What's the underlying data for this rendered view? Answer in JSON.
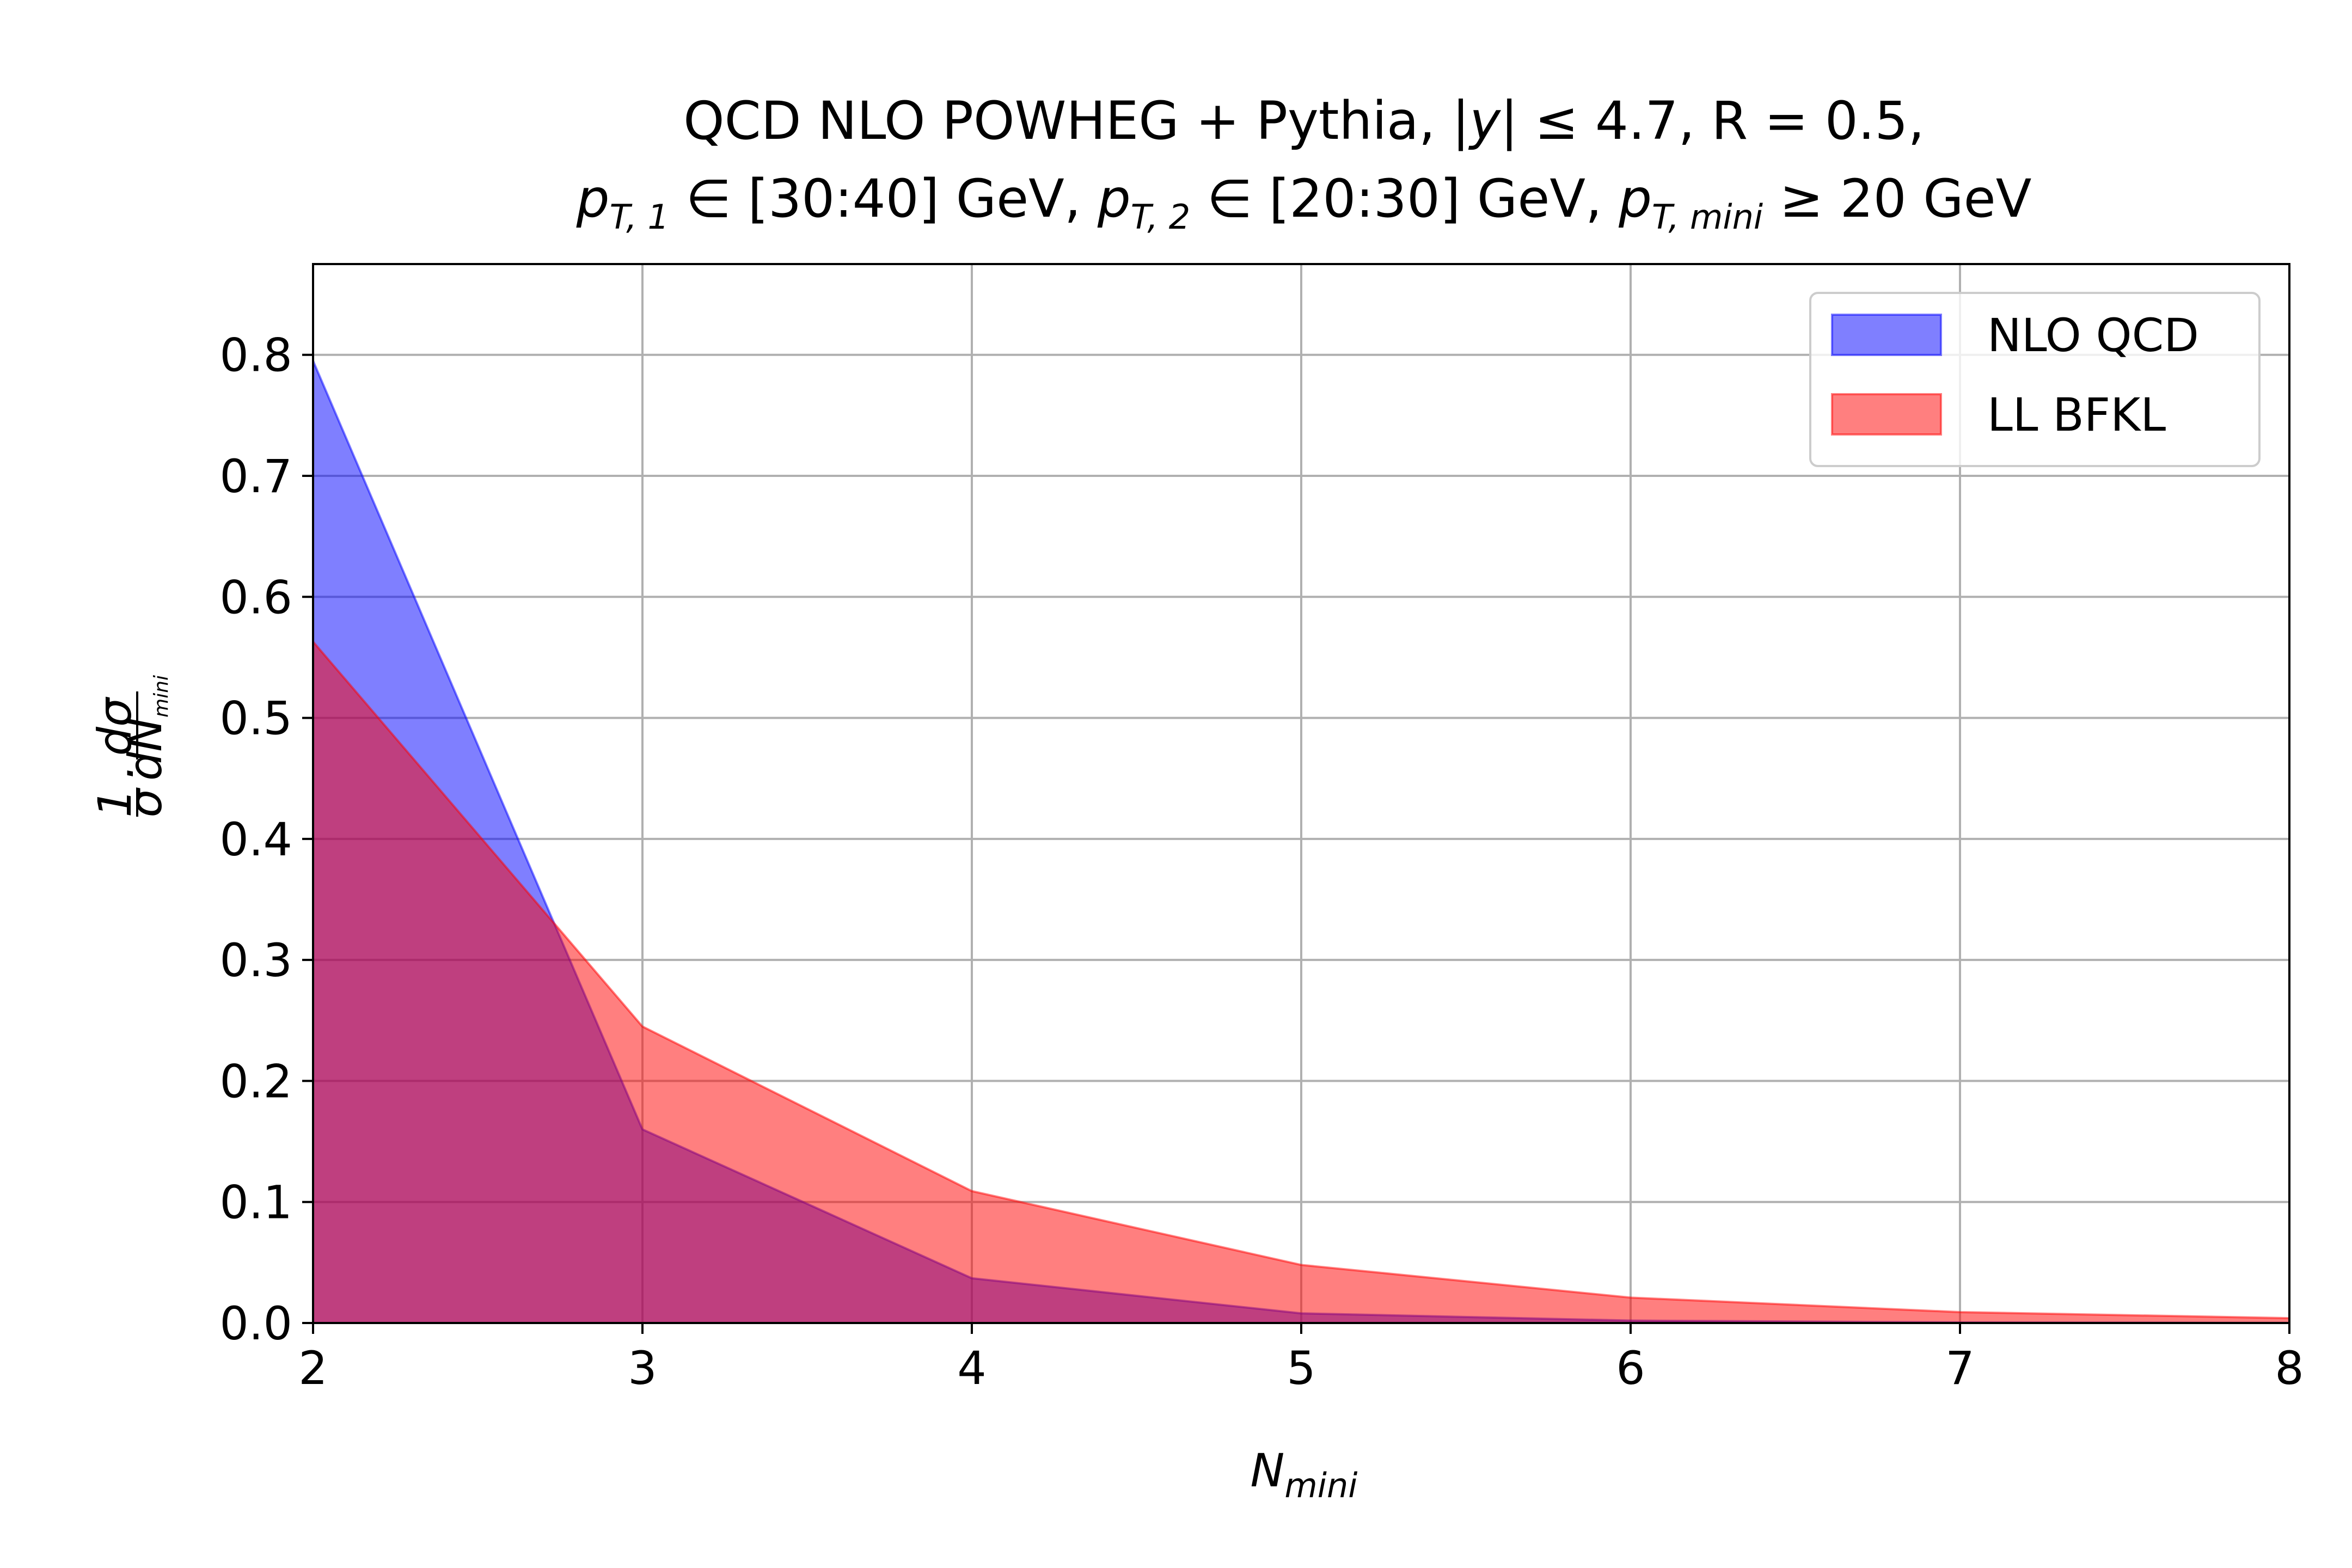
{
  "chart_data": {
    "type": "area",
    "title_line1": "QCD NLO POWHEG + Pythia, |y| ≤ 4.7, R = 0.5,",
    "title_line2": "p_{T,1} ∈ [30:40] GeV, p_{T,2} ∈ [20:30] GeV, p_{T,mini} ≥ 20 GeV",
    "title_parts": {
      "l1_a": "QCD NLO POWHEG + Pythia, |",
      "l1_y": "y",
      "l1_b": "| ≤ 4.7, R = 0.5,",
      "l2_p1": "p",
      "l2_s1": "T, 1",
      "l2_t1": " ∈  [30:40] GeV, ",
      "l2_p2": "p",
      "l2_s2": "T, 2",
      "l2_t2": " ∈  [20:30] GeV, ",
      "l2_p3": "p",
      "l2_s3": "T, mini",
      "l2_t3": " ≥ 20 GeV"
    },
    "xlabel": "N_mini",
    "xlabel_main": "N",
    "xlabel_sub": "mini",
    "ylabel": "1/σ · dσ/dN_mini",
    "ylabel_parts": {
      "one": "1",
      "sigma": "σ",
      "dot": "·",
      "dsigma": "dσ",
      "dN": "dN",
      "sub": "mini"
    },
    "xlim": [
      2,
      8
    ],
    "ylim": [
      0,
      0.875
    ],
    "xticks": [
      2,
      3,
      4,
      5,
      6,
      7,
      8
    ],
    "xtick_labels": [
      "2",
      "3",
      "4",
      "5",
      "6",
      "7",
      "8"
    ],
    "yticks": [
      0,
      0.1,
      0.2,
      0.3,
      0.4,
      0.5,
      0.6,
      0.7,
      0.8
    ],
    "ytick_labels": [
      "0.0",
      "0.1",
      "0.2",
      "0.3",
      "0.4",
      "0.5",
      "0.6",
      "0.7",
      "0.8"
    ],
    "grid": true,
    "legend_position": "top-right",
    "x": [
      2,
      3,
      4,
      5,
      6,
      7,
      8
    ],
    "series": [
      {
        "name": "NLO QCD",
        "color": "#0000ff",
        "values": [
          0.795,
          0.16,
          0.037,
          0.008,
          0.002,
          0.0005,
          0.0001
        ]
      },
      {
        "name": "LL BFKL",
        "color": "#ff0000",
        "values": [
          0.563,
          0.245,
          0.109,
          0.048,
          0.021,
          0.009,
          0.004
        ]
      }
    ]
  }
}
